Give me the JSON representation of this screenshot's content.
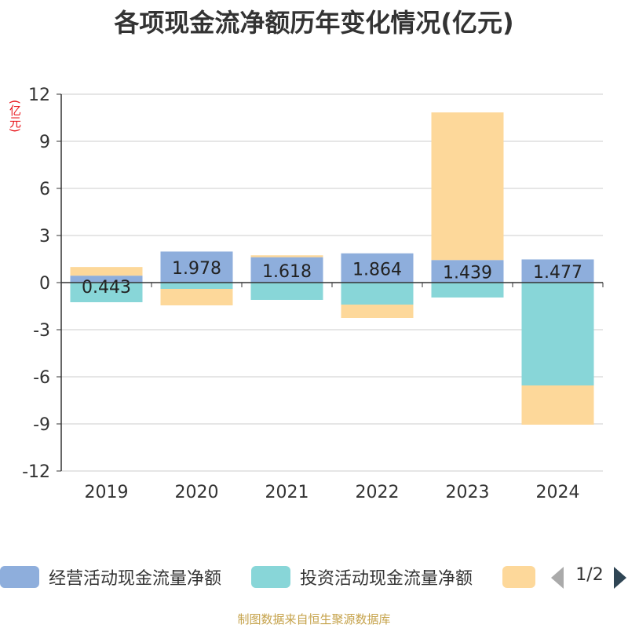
{
  "chart_data": {
    "type": "bar",
    "stacked": true,
    "title": "各项现金流净额历年变化情况(亿元)",
    "ylabel": "(亿元)",
    "ylim": [
      -12,
      12
    ],
    "yticks": [
      12,
      9,
      6,
      3,
      0,
      -3,
      -6,
      -9,
      -12
    ],
    "grid": true,
    "categories": [
      "2019",
      "2020",
      "2021",
      "2022",
      "2023",
      "2024"
    ],
    "series": [
      {
        "name": "经营活动现金流量净额",
        "color": "#8eaedc",
        "values": [
          0.443,
          1.978,
          1.618,
          1.864,
          1.439,
          1.477
        ],
        "labels": [
          "0.443",
          "1.978",
          "1.618",
          "1.864",
          "1.439",
          "1.477"
        ]
      },
      {
        "name": "投资活动现金流量净额",
        "color": "#88d6d8",
        "values": [
          -1.25,
          -0.4,
          -1.1,
          -1.4,
          -0.95,
          -6.55
        ]
      },
      {
        "name": "",
        "color": "#fdd89a",
        "values": [
          0.55,
          -1.05,
          0.12,
          -0.85,
          9.4,
          -2.5
        ]
      }
    ],
    "legend_position": "bottom"
  },
  "legend": {
    "page_indicator": "1/2"
  },
  "source": "制图数据来自恒生聚源数据库"
}
